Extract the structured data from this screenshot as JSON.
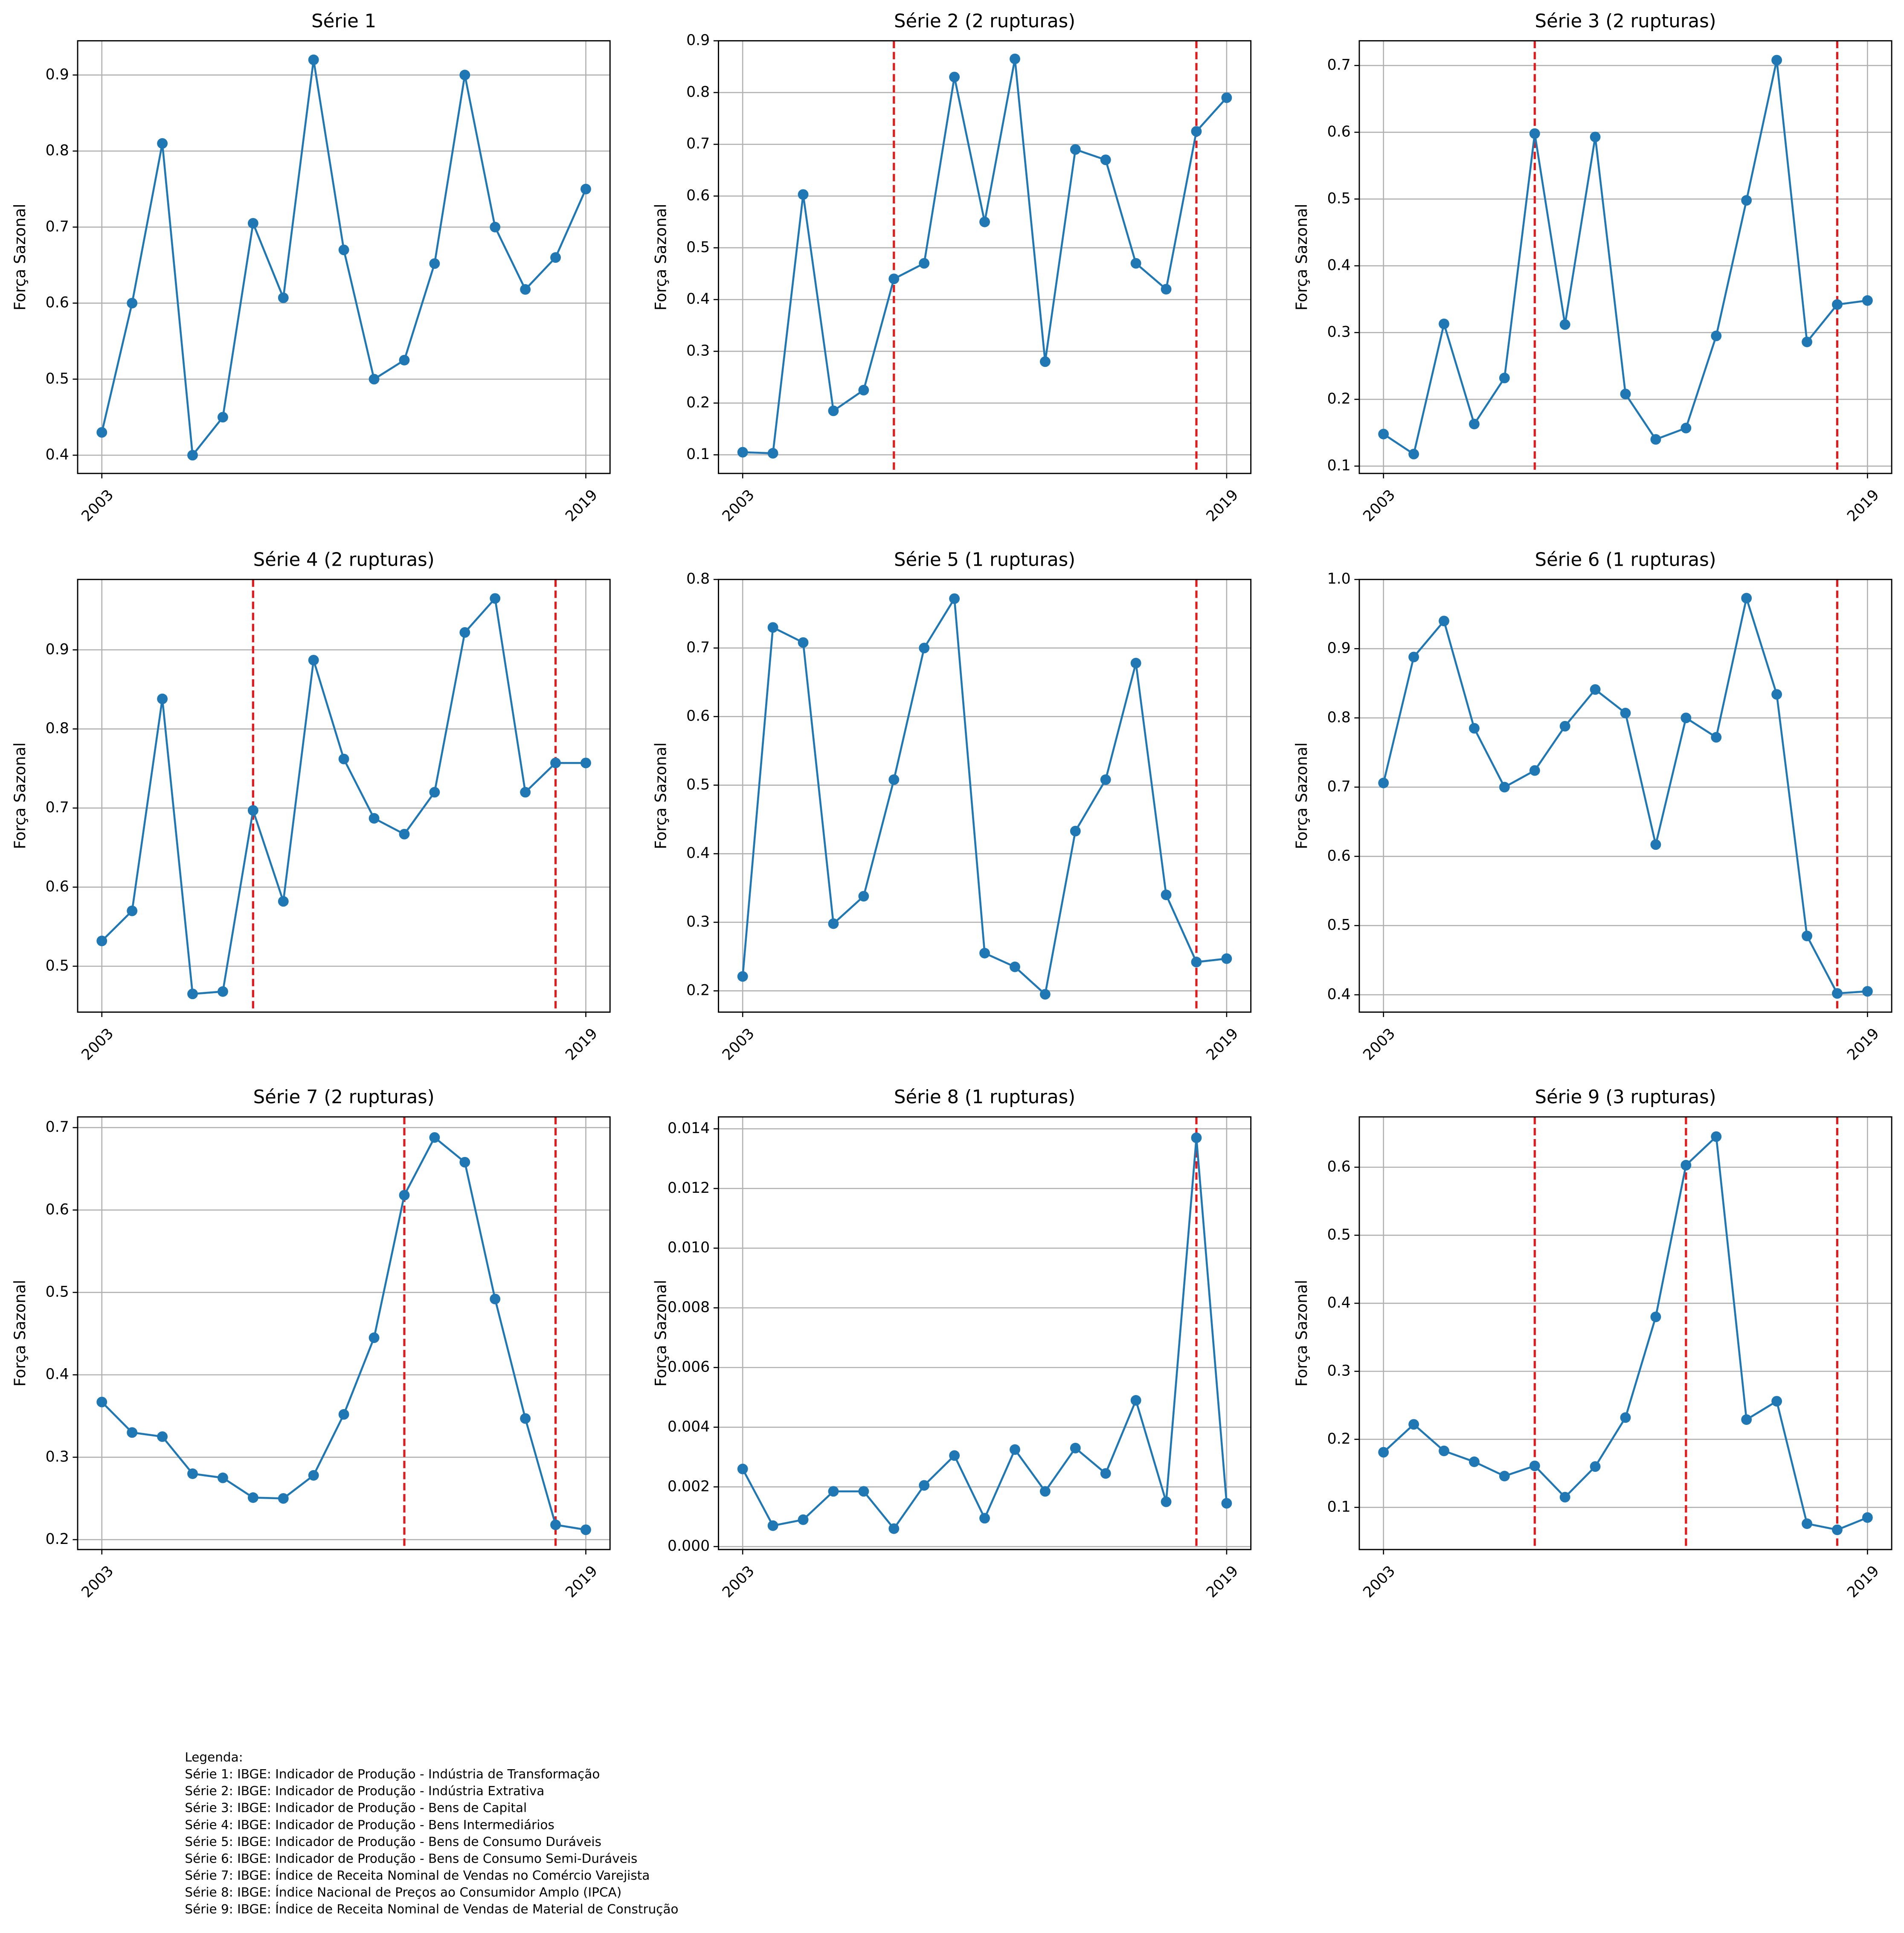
{
  "chart_data": [
    {
      "type": "line",
      "title": "Série 1",
      "ylabel": "Força Sazonal",
      "x": [
        2003,
        2004,
        2005,
        2006,
        2007,
        2008,
        2009,
        2010,
        2011,
        2012,
        2013,
        2014,
        2015,
        2016,
        2017,
        2018,
        2019
      ],
      "xticks": [
        2003,
        2019
      ],
      "xlim": [
        2002.2,
        2019.8
      ],
      "ylim": [
        0.376,
        0.945
      ],
      "yticks": [
        0.4,
        0.5,
        0.6,
        0.7,
        0.8,
        0.9
      ],
      "grid": true,
      "breaks": [],
      "break_color": "#e31a1c",
      "series": [
        {
          "color": "#1f77b4",
          "values": [
            0.43,
            0.6,
            0.81,
            0.4,
            0.45,
            0.705,
            0.607,
            0.92,
            0.67,
            0.5,
            0.525,
            0.652,
            0.9,
            0.7,
            0.618,
            0.66,
            0.75
          ]
        }
      ]
    },
    {
      "type": "line",
      "title": "Série 2 (2 rupturas)",
      "ylabel": "Força Sazonal",
      "x": [
        2003,
        2004,
        2005,
        2006,
        2007,
        2008,
        2009,
        2010,
        2011,
        2012,
        2013,
        2014,
        2015,
        2016,
        2017,
        2018,
        2019
      ],
      "xticks": [
        2003,
        2019
      ],
      "xlim": [
        2002.2,
        2019.8
      ],
      "ylim": [
        0.064,
        0.9
      ],
      "yticks": [
        0.1,
        0.2,
        0.3,
        0.4,
        0.5,
        0.6,
        0.7,
        0.8,
        0.9
      ],
      "grid": true,
      "breaks": [
        2008,
        2018
      ],
      "break_color": "#e31a1c",
      "series": [
        {
          "color": "#1f77b4",
          "values": [
            0.105,
            0.103,
            0.603,
            0.185,
            0.225,
            0.44,
            0.47,
            0.83,
            0.55,
            0.865,
            0.28,
            0.69,
            0.67,
            0.47,
            0.42,
            0.725,
            0.79
          ]
        }
      ]
    },
    {
      "type": "line",
      "title": "Série 3 (2 rupturas)",
      "ylabel": "Força Sazonal",
      "x": [
        2003,
        2004,
        2005,
        2006,
        2007,
        2008,
        2009,
        2010,
        2011,
        2012,
        2013,
        2014,
        2015,
        2016,
        2017,
        2018,
        2019
      ],
      "xticks": [
        2003,
        2019
      ],
      "xlim": [
        2002.2,
        2019.8
      ],
      "ylim": [
        0.089,
        0.737
      ],
      "yticks": [
        0.1,
        0.2,
        0.3,
        0.4,
        0.5,
        0.6,
        0.7
      ],
      "grid": true,
      "breaks": [
        2008,
        2018
      ],
      "break_color": "#e31a1c",
      "series": [
        {
          "color": "#1f77b4",
          "values": [
            0.148,
            0.118,
            0.313,
            0.163,
            0.232,
            0.598,
            0.312,
            0.593,
            0.208,
            0.14,
            0.157,
            0.295,
            0.498,
            0.708,
            0.286,
            0.342,
            0.348
          ]
        }
      ]
    },
    {
      "type": "line",
      "title": "Série 4 (2 rupturas)",
      "ylabel": "Força Sazonal",
      "x": [
        2003,
        2004,
        2005,
        2006,
        2007,
        2008,
        2009,
        2010,
        2011,
        2012,
        2013,
        2014,
        2015,
        2016,
        2017,
        2018,
        2019
      ],
      "xticks": [
        2003,
        2019
      ],
      "xlim": [
        2002.2,
        2019.8
      ],
      "ylim": [
        0.442,
        0.989
      ],
      "yticks": [
        0.5,
        0.6,
        0.7,
        0.8,
        0.9
      ],
      "grid": true,
      "breaks": [
        2008,
        2018
      ],
      "break_color": "#e31a1c",
      "series": [
        {
          "color": "#1f77b4",
          "values": [
            0.532,
            0.57,
            0.838,
            0.465,
            0.468,
            0.697,
            0.582,
            0.887,
            0.762,
            0.687,
            0.667,
            0.72,
            0.922,
            0.965,
            0.72,
            0.757,
            0.757
          ]
        }
      ]
    },
    {
      "type": "line",
      "title": "Série 5 (1 rupturas)",
      "ylabel": "Força Sazonal",
      "x": [
        2003,
        2004,
        2005,
        2006,
        2007,
        2008,
        2009,
        2010,
        2011,
        2012,
        2013,
        2014,
        2015,
        2016,
        2017,
        2018,
        2019
      ],
      "xticks": [
        2003,
        2019
      ],
      "xlim": [
        2002.2,
        2019.8
      ],
      "ylim": [
        0.169,
        0.8
      ],
      "yticks": [
        0.2,
        0.3,
        0.4,
        0.5,
        0.6,
        0.7,
        0.8
      ],
      "grid": true,
      "breaks": [
        2018
      ],
      "break_color": "#e31a1c",
      "series": [
        {
          "color": "#1f77b4",
          "values": [
            0.221,
            0.73,
            0.708,
            0.298,
            0.338,
            0.508,
            0.7,
            0.772,
            0.255,
            0.235,
            0.195,
            0.433,
            0.508,
            0.678,
            0.34,
            0.242,
            0.247
          ]
        }
      ]
    },
    {
      "type": "line",
      "title": "Série 6 (1 rupturas)",
      "ylabel": "Força Sazonal",
      "x": [
        2003,
        2004,
        2005,
        2006,
        2007,
        2008,
        2009,
        2010,
        2011,
        2012,
        2013,
        2014,
        2015,
        2016,
        2017,
        2018,
        2019
      ],
      "xticks": [
        2003,
        2019
      ],
      "xlim": [
        2002.2,
        2019.8
      ],
      "ylim": [
        0.375,
        1.0
      ],
      "yticks": [
        0.4,
        0.5,
        0.6,
        0.7,
        0.8,
        0.9,
        {
          "value": 1,
          "label": "1.0"
        }
      ],
      "grid": true,
      "breaks": [
        2018
      ],
      "break_color": "#e31a1c",
      "series": [
        {
          "color": "#1f77b4",
          "values": [
            0.706,
            0.888,
            0.94,
            0.785,
            0.7,
            0.724,
            0.788,
            0.841,
            0.807,
            0.617,
            0.8,
            0.772,
            0.973,
            0.834,
            0.485,
            0.402,
            0.405
          ]
        }
      ]
    },
    {
      "type": "line",
      "title": "Série 7 (2 rupturas)",
      "ylabel": "Força Sazonal",
      "x": [
        2003,
        2004,
        2005,
        2006,
        2007,
        2008,
        2009,
        2010,
        2011,
        2012,
        2013,
        2014,
        2015,
        2016,
        2017,
        2018,
        2019
      ],
      "xticks": [
        2003,
        2019
      ],
      "xlim": [
        2002.2,
        2019.8
      ],
      "ylim": [
        0.188,
        0.713
      ],
      "yticks": [
        0.2,
        0.3,
        0.4,
        0.5,
        0.6,
        0.7
      ],
      "grid": true,
      "breaks": [
        2013,
        2018
      ],
      "break_color": "#e31a1c",
      "series": [
        {
          "color": "#1f77b4",
          "values": [
            0.367,
            0.33,
            0.325,
            0.28,
            0.275,
            0.251,
            0.25,
            0.278,
            0.352,
            0.445,
            0.618,
            0.688,
            0.658,
            0.492,
            0.347,
            0.218,
            0.212
          ]
        }
      ]
    },
    {
      "type": "line",
      "title": "Série 8 (1 rupturas)",
      "ylabel": "Força Sazonal",
      "x": [
        2003,
        2004,
        2005,
        2006,
        2007,
        2008,
        2009,
        2010,
        2011,
        2012,
        2013,
        2014,
        2015,
        2016,
        2017,
        2018,
        2019
      ],
      "xticks": [
        2003,
        2019
      ],
      "xlim": [
        2002.2,
        2019.8
      ],
      "ylim": [
        -0.0001,
        0.0144
      ],
      "yticks": [
        {
          "value": 0,
          "label": "0.000"
        },
        {
          "value": 0.002,
          "label": "0.002"
        },
        {
          "value": 0.004,
          "label": "0.004"
        },
        {
          "value": 0.006,
          "label": "0.006"
        },
        {
          "value": 0.008,
          "label": "0.008"
        },
        {
          "value": 0.01,
          "label": "0.010"
        },
        {
          "value": 0.012,
          "label": "0.012"
        },
        {
          "value": 0.014,
          "label": "0.014"
        }
      ],
      "grid": true,
      "breaks": [
        2018
      ],
      "break_color": "#e31a1c",
      "series": [
        {
          "color": "#1f77b4",
          "values": [
            0.0026,
            0.0007,
            0.0009,
            0.00185,
            0.00185,
            0.0006,
            0.00205,
            0.00305,
            0.00095,
            0.00325,
            0.00185,
            0.0033,
            0.00245,
            0.0049,
            0.0015,
            0.0137,
            0.00145
          ]
        }
      ]
    },
    {
      "type": "line",
      "title": "Série 9 (3 rupturas)",
      "ylabel": "Força Sazonal",
      "x": [
        2003,
        2004,
        2005,
        2006,
        2007,
        2008,
        2009,
        2010,
        2011,
        2012,
        2013,
        2014,
        2015,
        2016,
        2017,
        2018,
        2019
      ],
      "xticks": [
        2003,
        2019
      ],
      "xlim": [
        2002.2,
        2019.8
      ],
      "ylim": [
        0.038,
        0.674
      ],
      "yticks": [
        0.1,
        0.2,
        0.3,
        0.4,
        0.5,
        0.6
      ],
      "grid": true,
      "breaks": [
        2008,
        2013,
        2018
      ],
      "break_color": "#e31a1c",
      "series": [
        {
          "color": "#1f77b4",
          "values": [
            0.181,
            0.222,
            0.183,
            0.167,
            0.146,
            0.161,
            0.115,
            0.16,
            0.232,
            0.38,
            0.603,
            0.645,
            0.229,
            0.256,
            0.076,
            0.067,
            0.085
          ]
        }
      ]
    }
  ],
  "legend_text": {
    "title": "Legenda:",
    "lines": [
      "Série 1: IBGE: Indicador de Produção - Indústria de Transformação",
      "Série 2: IBGE: Indicador de Produção - Indústria Extrativa",
      "Série 3: IBGE: Indicador de Produção - Bens de Capital",
      "Série 4: IBGE: Indicador de Produção - Bens Intermediários",
      "Série 5: IBGE: Indicador de Produção - Bens de Consumo Duráveis",
      "Série 6: IBGE: Indicador de Produção - Bens de Consumo Semi-Duráveis",
      "Série 7: IBGE: Índice de Receita Nominal de Vendas no Comércio Varejista",
      "Série 8: IBGE: Índice Nacional de Preços ao Consumidor Amplo (IPCA)",
      "Série 9: IBGE: Índice de Receita Nominal de Vendas de Material de Construção"
    ]
  }
}
